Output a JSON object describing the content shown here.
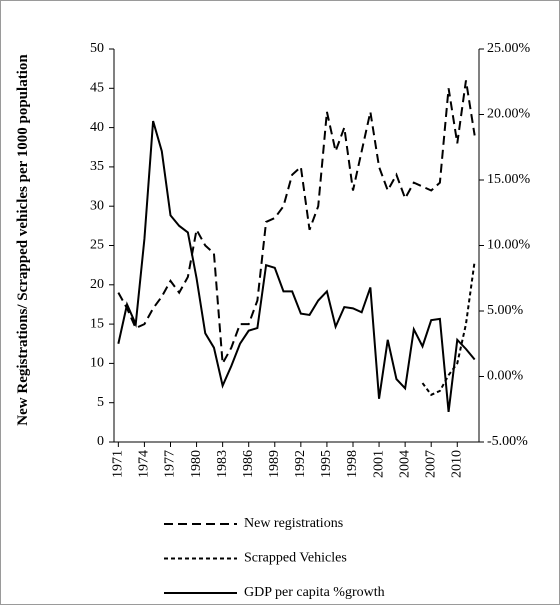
{
  "chart_data": {
    "type": "line",
    "y_label": "New Registrations/ Scrapped vehicles per  1000 population",
    "x": [
      1971,
      1972,
      1973,
      1974,
      1975,
      1976,
      1977,
      1978,
      1979,
      1980,
      1981,
      1982,
      1983,
      1984,
      1985,
      1986,
      1987,
      1988,
      1989,
      1990,
      1991,
      1992,
      1993,
      1994,
      1995,
      1996,
      1997,
      1998,
      1999,
      2000,
      2001,
      2002,
      2003,
      2004,
      2005,
      2006,
      2007,
      2008,
      2009,
      2010,
      2011,
      2012
    ],
    "xlim": [
      1970.5,
      2012.5
    ],
    "xticks": [
      1971,
      1974,
      1977,
      1980,
      1983,
      1986,
      1989,
      1992,
      1995,
      1998,
      2001,
      2004,
      2007,
      2010
    ],
    "ylim": [
      0,
      50
    ],
    "yticks": [
      0,
      5,
      10,
      15,
      20,
      25,
      30,
      35,
      40,
      45,
      50
    ],
    "y2lim": [
      -5,
      25
    ],
    "y2ticks": [
      {
        "value": -5,
        "label": "-5.00%"
      },
      {
        "value": 0,
        "label": "0.00%"
      },
      {
        "value": 5,
        "label": "5.00%"
      },
      {
        "value": 10,
        "label": "10.00%"
      },
      {
        "value": 15,
        "label": "15.00%"
      },
      {
        "value": 20,
        "label": "20.00%"
      },
      {
        "value": 25,
        "label": "25.00%"
      }
    ],
    "series": [
      {
        "name": "New registrations",
        "color": "#000000",
        "dash": "9 5",
        "values": [
          19,
          17,
          14.5,
          15,
          17,
          18.5,
          20.5,
          19,
          21,
          27,
          25,
          24,
          10,
          12,
          15,
          15,
          18,
          28,
          28.5,
          30,
          34,
          35,
          27,
          30,
          42,
          37,
          40,
          32,
          37,
          42,
          35,
          32,
          34,
          31,
          33,
          32.5,
          32,
          33,
          45,
          38,
          46,
          39
        ]
      },
      {
        "name": "Scrapped Vehicles",
        "color": "#000000",
        "dash": "4 3",
        "values": [
          null,
          null,
          null,
          null,
          null,
          null,
          null,
          null,
          null,
          null,
          null,
          null,
          null,
          null,
          null,
          null,
          null,
          null,
          null,
          null,
          null,
          null,
          null,
          null,
          null,
          null,
          null,
          null,
          null,
          null,
          null,
          null,
          null,
          null,
          null,
          7.5,
          6,
          6.5,
          8.5,
          10,
          15,
          23
        ]
      },
      {
        "name": "GDP per capita %growth",
        "color": "#000000",
        "dash": "none",
        "axis": "y2",
        "values": [
          2.5,
          5.5,
          4,
          10.5,
          19.5,
          17.2,
          12.3,
          11.5,
          11,
          7.5,
          3.3,
          2.2,
          -0.7,
          0.8,
          2.5,
          3.5,
          3.7,
          8.5,
          8.3,
          6.5,
          6.5,
          4.8,
          4.7,
          5.8,
          6.5,
          3.8,
          5.3,
          5.2,
          4.9,
          6.8,
          -1.7,
          2.8,
          -0.2,
          -0.9,
          3.6,
          2.3,
          4.3,
          4.4,
          -2.7,
          2.8,
          2.1,
          1.3
        ]
      }
    ]
  }
}
